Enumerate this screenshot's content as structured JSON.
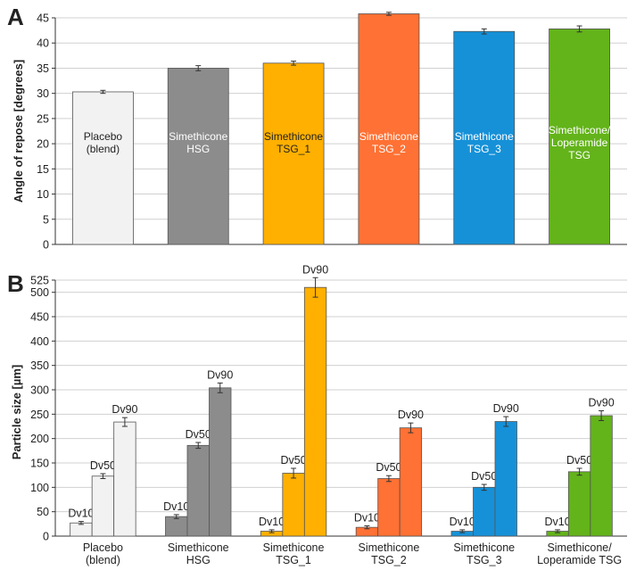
{
  "chart_data": [
    {
      "panel_letter": "A",
      "type": "bar",
      "title": "",
      "xlabel": "",
      "ylabel": "Angle of repose [degrees]",
      "ylim": [
        0,
        45
      ],
      "yticks": [
        0,
        5,
        10,
        15,
        20,
        25,
        30,
        35,
        40,
        45
      ],
      "grid": true,
      "categories": [
        {
          "label": [
            "Placebo",
            "(blend)"
          ],
          "color": "#f2f2f2",
          "label_color": "#222222",
          "value": 30.3,
          "error": 0.3
        },
        {
          "label": [
            "Simethicone",
            "HSG"
          ],
          "color": "#8c8c8c",
          "label_color": "#ffffff",
          "value": 35.0,
          "error": 0.5
        },
        {
          "label": [
            "Simethicone",
            "TSG_1"
          ],
          "color": "#ffb000",
          "label_color": "#222222",
          "value": 36.0,
          "error": 0.4
        },
        {
          "label": [
            "Simethicone",
            "TSG_2"
          ],
          "color": "#ff7134",
          "label_color": "#ffffff",
          "value": 45.8,
          "error": 0.3
        },
        {
          "label": [
            "Simethicone",
            "TSG_3"
          ],
          "color": "#1691d8",
          "label_color": "#ffffff",
          "value": 42.3,
          "error": 0.5
        },
        {
          "label": [
            "Simethicone/",
            "Loperamide",
            "TSG"
          ],
          "color": "#63b31a",
          "label_color": "#ffffff",
          "value": 42.8,
          "error": 0.6
        }
      ]
    },
    {
      "panel_letter": "B",
      "type": "bar",
      "title": "",
      "xlabel": "",
      "ylabel": "Particle size [µm]",
      "ylim": [
        0,
        525
      ],
      "yticks": [
        0,
        50,
        100,
        150,
        200,
        250,
        300,
        350,
        400,
        450,
        500,
        525
      ],
      "grid": true,
      "series_names": [
        "Dv10",
        "Dv50",
        "Dv90"
      ],
      "categories": [
        {
          "label": [
            "Placebo",
            "(blend)"
          ],
          "color": "#f2f2f2",
          "values": [
            27,
            123,
            234
          ],
          "errors": [
            3,
            5,
            9
          ]
        },
        {
          "label": [
            "Simethicone",
            "HSG"
          ],
          "color": "#8c8c8c",
          "values": [
            40,
            186,
            304
          ],
          "errors": [
            4,
            6,
            10
          ]
        },
        {
          "label": [
            "Simethicone",
            "TSG_1"
          ],
          "color": "#ffb000",
          "values": [
            10,
            129,
            510
          ],
          "errors": [
            3,
            10,
            20
          ]
        },
        {
          "label": [
            "Simethicone",
            "TSG_2"
          ],
          "color": "#ff7134",
          "values": [
            18,
            118,
            222
          ],
          "errors": [
            3,
            6,
            10
          ]
        },
        {
          "label": [
            "Simethicone",
            "TSG_3"
          ],
          "color": "#1691d8",
          "values": [
            10,
            100,
            235
          ],
          "errors": [
            3,
            6,
            10
          ]
        },
        {
          "label": [
            "Simethicone/",
            "Loperamide TSG"
          ],
          "color": "#63b31a",
          "values": [
            10,
            132,
            247
          ],
          "errors": [
            3,
            7,
            10
          ]
        }
      ]
    }
  ]
}
